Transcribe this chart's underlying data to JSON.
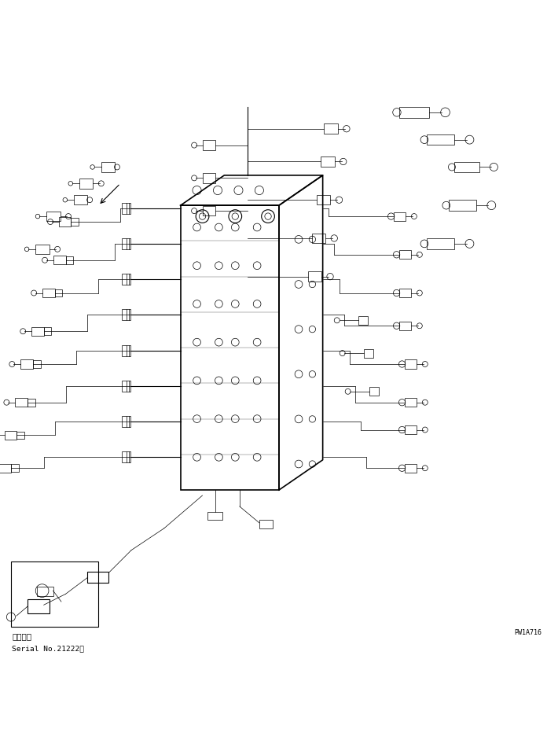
{
  "title": "",
  "background_color": "#ffffff",
  "line_color": "#000000",
  "text_color": "#000000",
  "bottom_left_box": {
    "bx": 0.02,
    "by": 0.02,
    "bwidth": 0.16,
    "bheight": 0.12,
    "label_line1": "適用号機",
    "label_line2": "Serial No.21222～"
  },
  "watermark": "PW1A716",
  "figsize": [
    6.96,
    9.28
  ],
  "dpi": 100
}
